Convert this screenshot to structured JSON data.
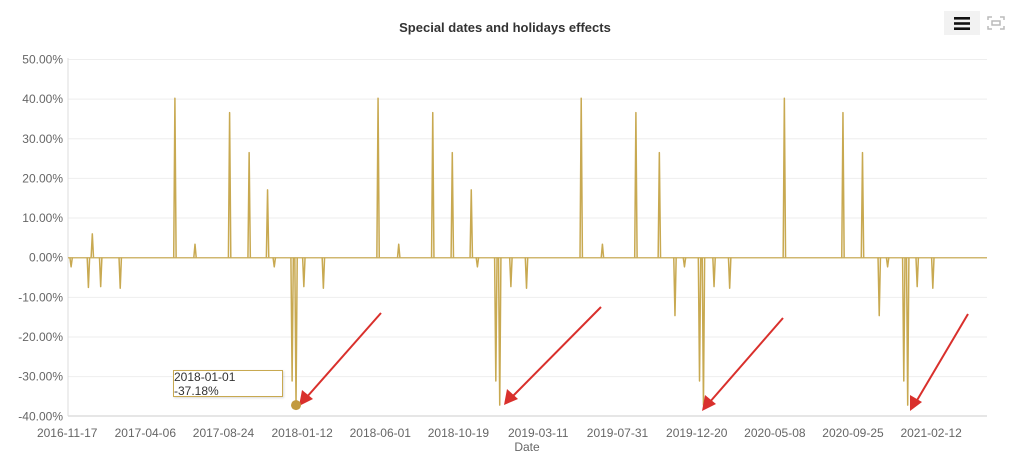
{
  "chart_data": {
    "type": "line",
    "title": "Special dates and holidays effects",
    "xlabel": "Date",
    "ylabel": "",
    "x_type": "date",
    "xlim": [
      "2016-11-17",
      "2021-05-22"
    ],
    "ylim": [
      -40,
      50
    ],
    "y_unit": "%",
    "y_ticks": [
      "50.00%",
      "40.00%",
      "30.00%",
      "20.00%",
      "10.00%",
      "0.00%",
      "-10.00%",
      "-20.00%",
      "-30.00%",
      "-40.00%"
    ],
    "y_tick_values": [
      50,
      40,
      30,
      20,
      10,
      0,
      -10,
      -20,
      -30,
      -40
    ],
    "x_ticks": [
      "2016-11-17",
      "2017-04-06",
      "2017-08-24",
      "2018-01-12",
      "2018-06-01",
      "2018-10-19",
      "2019-03-11",
      "2019-07-31",
      "2019-12-20",
      "2020-05-08",
      "2020-09-25",
      "2021-02-12"
    ],
    "grid": true,
    "legend": "none",
    "baseline_value": 0,
    "series": [
      {
        "color": "#c8a951",
        "points": [
          {
            "x": "2016-11-24",
            "y": -2.3
          },
          {
            "x": "2016-12-25",
            "y": -7.5
          },
          {
            "x": "2017-01-01",
            "y": 6.0
          },
          {
            "x": "2017-01-16",
            "y": -7.3
          },
          {
            "x": "2017-02-20",
            "y": -7.7
          },
          {
            "x": "2017-05-29",
            "y": 40.2
          },
          {
            "x": "2017-07-04",
            "y": 3.4
          },
          {
            "x": "2017-09-04",
            "y": 36.6
          },
          {
            "x": "2017-10-09",
            "y": 26.5
          },
          {
            "x": "2017-11-11",
            "y": 17.1
          },
          {
            "x": "2017-11-23",
            "y": -2.3
          },
          {
            "x": "2017-12-25",
            "y": -31.1
          },
          {
            "x": "2018-01-01",
            "y": -37.18
          },
          {
            "x": "2018-01-15",
            "y": -7.3
          },
          {
            "x": "2018-02-19",
            "y": -7.7
          },
          {
            "x": "2018-05-28",
            "y": 40.2
          },
          {
            "x": "2018-07-04",
            "y": 3.4
          },
          {
            "x": "2018-09-03",
            "y": 36.6
          },
          {
            "x": "2018-10-08",
            "y": 26.5
          },
          {
            "x": "2018-11-11",
            "y": 17.1
          },
          {
            "x": "2018-11-22",
            "y": -2.3
          },
          {
            "x": "2018-12-25",
            "y": -31.1
          },
          {
            "x": "2019-01-01",
            "y": -37.18
          },
          {
            "x": "2019-01-21",
            "y": -7.3
          },
          {
            "x": "2019-02-18",
            "y": -7.7
          },
          {
            "x": "2019-05-27",
            "y": 40.2
          },
          {
            "x": "2019-07-04",
            "y": 3.4
          },
          {
            "x": "2019-09-02",
            "y": 36.6
          },
          {
            "x": "2019-10-14",
            "y": 26.5
          },
          {
            "x": "2019-11-11",
            "y": -14.6
          },
          {
            "x": "2019-11-28",
            "y": -2.3
          },
          {
            "x": "2019-12-25",
            "y": -31.1
          },
          {
            "x": "2020-01-01",
            "y": -37.18
          },
          {
            "x": "2020-01-20",
            "y": -7.3
          },
          {
            "x": "2020-02-17",
            "y": -7.7
          },
          {
            "x": "2020-05-25",
            "y": 40.2
          },
          {
            "x": "2020-09-07",
            "y": 36.6
          },
          {
            "x": "2020-10-12",
            "y": 26.5
          },
          {
            "x": "2020-11-11",
            "y": -14.6
          },
          {
            "x": "2020-11-26",
            "y": -2.3
          },
          {
            "x": "2020-12-25",
            "y": -31.1
          },
          {
            "x": "2021-01-01",
            "y": -37.18
          },
          {
            "x": "2021-01-18",
            "y": -7.3
          },
          {
            "x": "2021-02-15",
            "y": -7.7
          }
        ]
      }
    ],
    "tooltip": {
      "x": "2018-01-01",
      "y": -37.18,
      "text": "2018-01-01 -37.18%"
    },
    "annotations": {
      "type": "arrow",
      "color": "#d9302c",
      "count": 4
    }
  },
  "toolbar": {
    "menu_icon": "hamburger-menu-icon",
    "fullscreen_icon": "fullscreen-icon"
  }
}
